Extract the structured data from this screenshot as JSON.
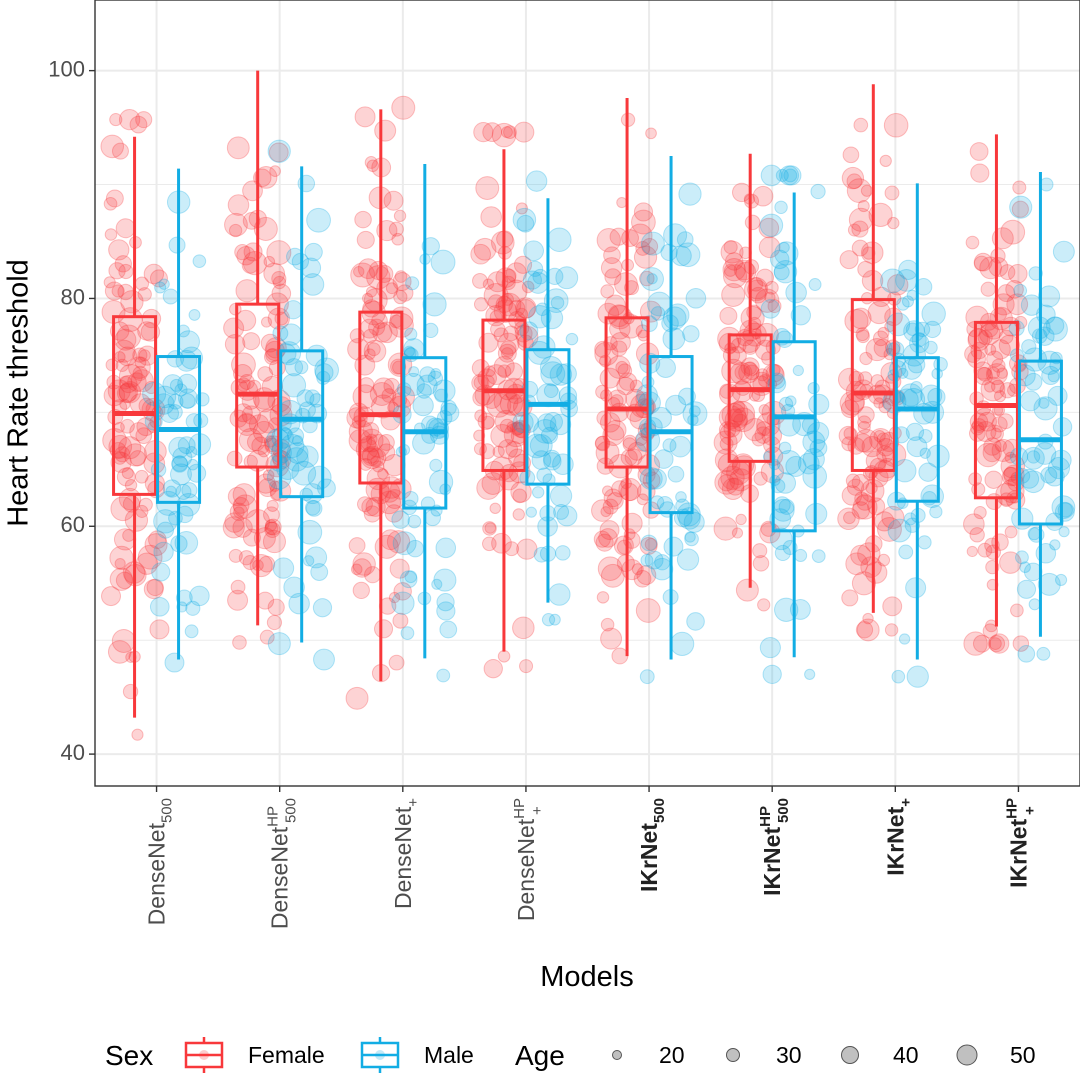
{
  "chart_data": {
    "type": "box",
    "xlabel": "Models",
    "ylabel": "Heart Rate threshold",
    "ylim": [
      37.2,
      106.2
    ],
    "yticks": [
      40,
      60,
      80,
      100
    ],
    "grid": true,
    "categories": [
      {
        "base": "DenseNet",
        "sub": "500",
        "sup": "",
        "bold": false
      },
      {
        "base": "DenseNet",
        "sub": "500",
        "sup": "HP",
        "bold": false
      },
      {
        "base": "DenseNet",
        "sub": "+",
        "sup": "",
        "bold": false
      },
      {
        "base": "DenseNet",
        "sub": "+",
        "sup": "HP",
        "bold": false
      },
      {
        "base": "IKrNet",
        "sub": "500",
        "sup": "",
        "bold": true
      },
      {
        "base": "IKrNet",
        "sub": "500",
        "sup": "HP",
        "bold": true
      },
      {
        "base": "IKrNet",
        "sub": "+",
        "sup": "",
        "bold": true
      },
      {
        "base": "IKrNet",
        "sub": "+",
        "sup": "HP",
        "bold": true
      }
    ],
    "series": [
      {
        "name": "Female",
        "color": "#F8383B",
        "boxes": [
          {
            "lower": 43.2,
            "q1": 62.8,
            "median": 69.9,
            "q3": 78.4,
            "upper": 94.2
          },
          {
            "lower": 51.3,
            "q1": 65.2,
            "median": 71.6,
            "q3": 79.5,
            "upper": 100.0
          },
          {
            "lower": 46.4,
            "q1": 63.8,
            "median": 69.8,
            "q3": 78.8,
            "upper": 96.6
          },
          {
            "lower": 49.0,
            "q1": 64.9,
            "median": 71.9,
            "q3": 78.1,
            "upper": 93.1
          },
          {
            "lower": 48.6,
            "q1": 65.2,
            "median": 70.3,
            "q3": 78.3,
            "upper": 97.6
          },
          {
            "lower": 54.6,
            "q1": 65.7,
            "median": 72.0,
            "q3": 76.8,
            "upper": 92.7
          },
          {
            "lower": 52.4,
            "q1": 64.9,
            "median": 71.7,
            "q3": 79.9,
            "upper": 98.8
          },
          {
            "lower": 51.2,
            "q1": 62.5,
            "median": 70.6,
            "q3": 77.9,
            "upper": 94.4
          }
        ]
      },
      {
        "name": "Male",
        "color": "#12ADE4",
        "boxes": [
          {
            "lower": 48.3,
            "q1": 62.1,
            "median": 68.5,
            "q3": 74.9,
            "upper": 91.4
          },
          {
            "lower": 49.8,
            "q1": 62.6,
            "median": 69.4,
            "q3": 75.4,
            "upper": 91.6
          },
          {
            "lower": 48.4,
            "q1": 61.6,
            "median": 68.3,
            "q3": 74.8,
            "upper": 91.8
          },
          {
            "lower": 53.3,
            "q1": 63.7,
            "median": 70.7,
            "q3": 75.5,
            "upper": 88.8
          },
          {
            "lower": 48.3,
            "q1": 61.2,
            "median": 68.3,
            "q3": 74.9,
            "upper": 92.5
          },
          {
            "lower": 48.5,
            "q1": 59.6,
            "median": 69.6,
            "q3": 76.2,
            "upper": 89.3
          },
          {
            "lower": 48.3,
            "q1": 62.2,
            "median": 70.3,
            "q3": 74.8,
            "upper": 90.1
          },
          {
            "lower": 50.3,
            "q1": 60.2,
            "median": 67.6,
            "q3": 74.5,
            "upper": 91.1
          }
        ]
      }
    ],
    "legend": {
      "position": "bottom",
      "sex_title": "Sex",
      "sex_items": [
        "Female",
        "Male"
      ],
      "age_title": "Age",
      "age_items": [
        "20",
        "30",
        "40",
        "50"
      ]
    }
  }
}
